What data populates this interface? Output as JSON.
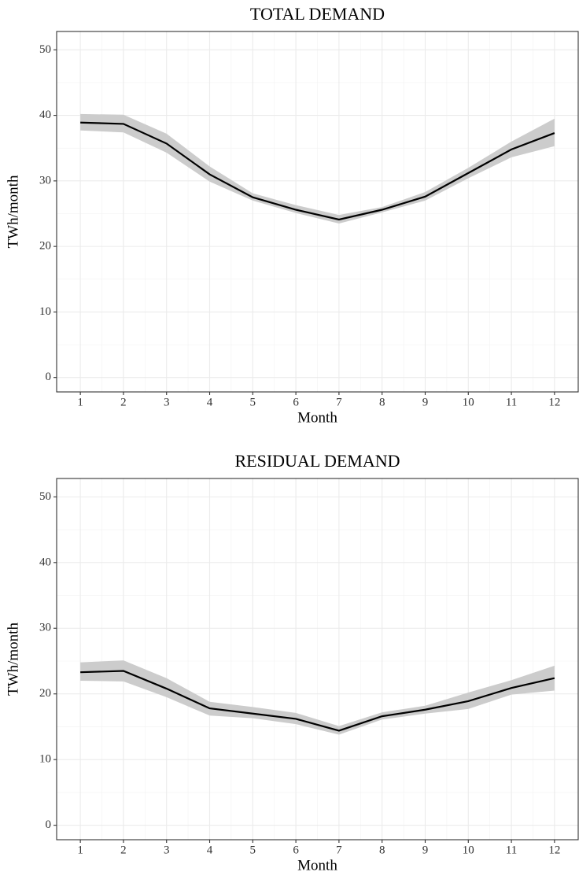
{
  "chart_data": [
    {
      "type": "line",
      "title": "TOTAL DEMAND",
      "x_label": "Month",
      "y_label": "TWh/month",
      "x": [
        1,
        2,
        3,
        4,
        5,
        6,
        7,
        8,
        9,
        10,
        11,
        12
      ],
      "values": [
        38.9,
        38.7,
        35.7,
        31.0,
        27.5,
        25.6,
        24.1,
        25.6,
        27.6,
        31.2,
        34.8,
        37.3
      ],
      "lower": [
        37.7,
        37.4,
        34.3,
        29.9,
        27.0,
        25.1,
        23.5,
        25.2,
        27.0,
        30.4,
        33.6,
        35.3
      ],
      "upper": [
        40.2,
        40.1,
        37.2,
        32.2,
        28.1,
        26.3,
        24.8,
        26.0,
        28.3,
        32.0,
        36.0,
        39.5
      ],
      "color": "#000000",
      "band_color": "#cccccc",
      "xlim": [
        0.45,
        12.55
      ],
      "xticks": [
        1,
        2,
        3,
        4,
        5,
        6,
        7,
        8,
        9,
        10,
        11,
        12
      ],
      "ylim": [
        -2.2,
        52.8
      ],
      "yticks": [
        0,
        10,
        20,
        30,
        40,
        50
      ],
      "grid": true
    },
    {
      "type": "line",
      "title": "RESIDUAL DEMAND",
      "x_label": "Month",
      "y_label": "TWh/month",
      "x": [
        1,
        2,
        3,
        4,
        5,
        6,
        7,
        8,
        9,
        10,
        11,
        12
      ],
      "values": [
        23.3,
        23.5,
        20.8,
        17.8,
        17.0,
        16.2,
        14.4,
        16.6,
        17.6,
        18.9,
        20.9,
        22.4
      ],
      "lower": [
        22.0,
        21.9,
        19.5,
        16.7,
        16.3,
        15.4,
        13.8,
        16.1,
        17.0,
        17.7,
        19.9,
        20.5
      ],
      "upper": [
        24.8,
        25.1,
        22.4,
        18.8,
        18.0,
        17.1,
        15.1,
        17.2,
        18.2,
        20.2,
        22.1,
        24.3
      ],
      "color": "#000000",
      "band_color": "#cccccc",
      "xlim": [
        0.45,
        12.55
      ],
      "xticks": [
        1,
        2,
        3,
        4,
        5,
        6,
        7,
        8,
        9,
        10,
        11,
        12
      ],
      "ylim": [
        -2.2,
        52.8
      ],
      "yticks": [
        0,
        10,
        20,
        30,
        40,
        50
      ],
      "grid": true
    }
  ]
}
